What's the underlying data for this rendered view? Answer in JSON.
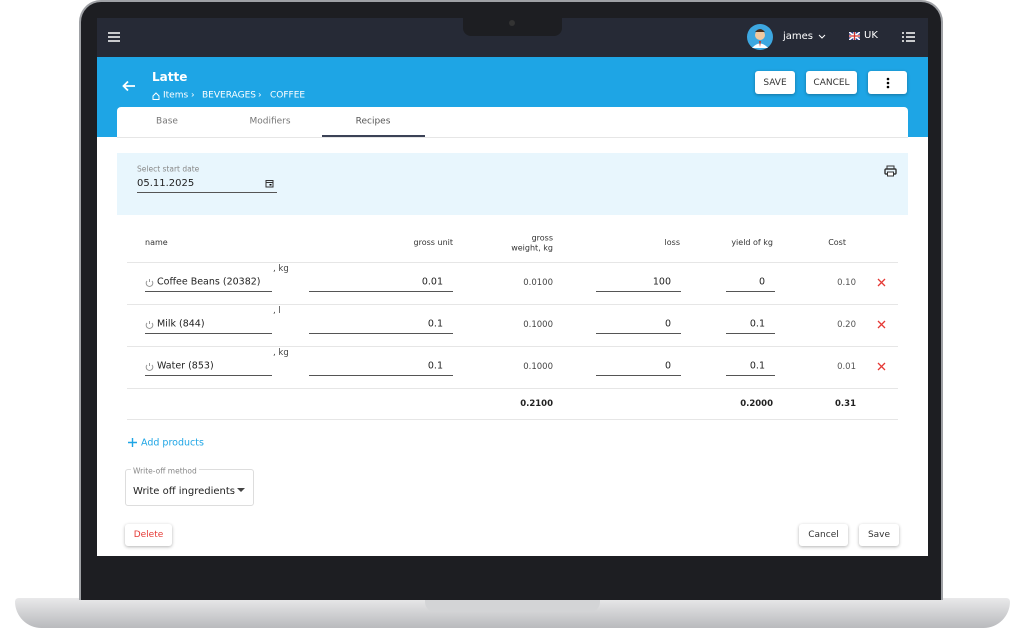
{
  "top_bar": {
    "user": "james",
    "locale": "UK"
  },
  "header": {
    "title": "Latte",
    "breadcrumb": [
      "Items",
      "BEVERAGES",
      "COFFEE"
    ],
    "actions": [
      "SAVE",
      "CANCEL"
    ]
  },
  "tabs": [
    "Base",
    "Modifiers",
    "Recipes"
  ],
  "start_date": {
    "label": "Select start date",
    "value": "05.11.2025"
  },
  "table": {
    "columns": [
      "name",
      "gross unit",
      "gross weight, kg",
      "loss",
      "yield of kg",
      "Cost"
    ],
    "rows": [
      [
        "Coffee Beans (20382)",
        ", kg",
        "0.01",
        "0.0100",
        "100",
        "0",
        "0.10"
      ],
      [
        "Milk (844)",
        ", l",
        "0.1",
        "0.1000",
        "0",
        "0.1",
        "0.20"
      ],
      [
        "Water (853)",
        ", kg",
        "0.1",
        "0.1000",
        "0",
        "0.1",
        "0.01"
      ]
    ],
    "totals": [
      "0.2100",
      "0.2000",
      "0.31"
    ]
  },
  "add_products": "Add products",
  "write_off": {
    "label": "Write-off method",
    "value": "Write off ingredients"
  },
  "footer": {
    "delete": "Delete",
    "cancel": "Cancel",
    "save": "Save"
  }
}
